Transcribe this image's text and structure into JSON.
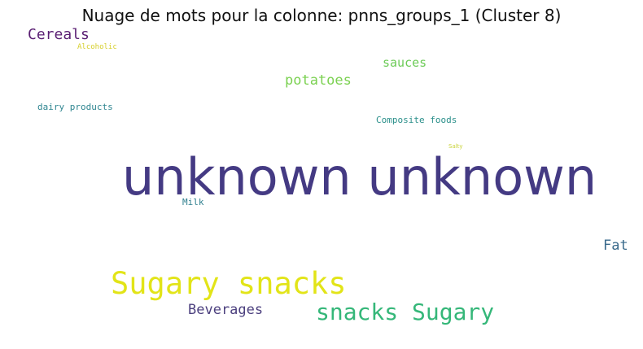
{
  "title": "Nuage de mots pour la colonne: pnns_groups_1 (Cluster 8)",
  "words": [
    {
      "text": "Cereals",
      "color": "#5a1f73"
    },
    {
      "text": "Alcoholic",
      "color": "#d6cf2a"
    },
    {
      "text": "sauces",
      "color": "#6ccb57"
    },
    {
      "text": "potatoes",
      "color": "#7bd151"
    },
    {
      "text": "dairy products",
      "color": "#2e8590"
    },
    {
      "text": "Composite foods",
      "color": "#2a8f8a"
    },
    {
      "text": "Salty",
      "color": "#c9d33a"
    },
    {
      "text": "unknown unknown",
      "color": "#443a83"
    },
    {
      "text": "Milk",
      "color": "#2e7f8e"
    },
    {
      "text": "Fat",
      "color": "#3a6a8c"
    },
    {
      "text": "Sugary snacks",
      "color": "#e2e418"
    },
    {
      "text": "Beverages",
      "color": "#4b3f7e"
    },
    {
      "text": "snacks Sugary",
      "color": "#35b779"
    }
  ]
}
